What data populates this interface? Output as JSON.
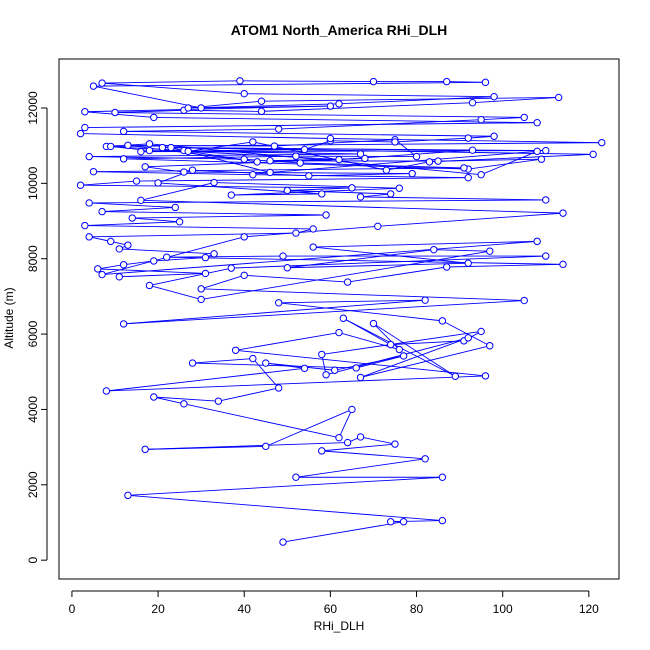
{
  "chart_data": {
    "type": "line",
    "title": "ATOM1 North_America RHi_DLH",
    "xlabel": "RHi_DLH",
    "ylabel": "Altitude (m)",
    "xlim": [
      -3,
      127
    ],
    "ylim": [
      -500,
      13300
    ],
    "x_ticks": [
      "0",
      "20",
      "40",
      "60",
      "80",
      "100",
      "120"
    ],
    "y_ticks": [
      "0",
      "2000",
      "4000",
      "6000",
      "8000",
      "10000",
      "12000"
    ],
    "grid": false,
    "legend": "none",
    "markers": "open-circle",
    "color": "#0000ff",
    "series": [
      {
        "x": [
          49,
          77,
          74,
          86,
          13,
          86,
          52,
          82,
          58,
          75,
          67,
          64,
          17,
          45,
          65,
          62,
          26,
          19,
          34,
          48,
          42,
          28,
          66,
          77,
          61,
          45,
          54,
          8,
          96,
          38,
          62,
          76,
          70,
          89,
          63,
          74,
          91,
          95,
          58,
          59,
          92,
          67,
          97,
          86,
          48,
          82,
          12,
          105,
          30,
          40,
          64,
          87,
          114,
          22,
          49,
          110,
          37,
          18,
          30,
          97,
          84,
          50,
          92,
          56,
          108,
          7,
          40,
          71,
          114,
          16,
          33,
          76,
          37,
          58,
          20,
          28,
          55,
          79,
          26,
          17,
          68,
          46,
          85,
          109,
          92,
          12,
          52,
          80,
          75,
          47,
          13,
          43,
          26,
          8,
          18,
          95,
          108,
          46,
          23,
          93,
          62,
          27,
          42,
          73,
          83,
          121,
          21,
          110,
          16,
          54,
          60,
          75,
          92,
          98,
          12,
          48,
          95,
          105,
          10,
          26,
          44,
          93,
          113,
          44,
          27,
          62,
          98,
          40,
          7,
          39,
          70,
          87,
          96,
          5,
          30,
          60,
          3,
          19,
          108,
          3,
          2,
          60,
          123,
          9,
          18,
          67,
          4,
          40,
          53,
          91,
          5,
          42,
          92,
          15,
          2,
          65,
          50,
          74,
          67,
          110,
          4,
          24,
          7,
          59,
          14,
          25,
          3,
          56,
          52,
          4,
          9,
          13,
          11,
          33,
          31,
          19,
          12,
          6,
          31,
          11
        ],
        "y": [
          480,
          1020,
          1020,
          1050,
          1720,
          2200,
          2200,
          2690,
          2900,
          3080,
          3270,
          3120,
          2940,
          3020,
          4000,
          3250,
          4150,
          4330,
          4220,
          4570,
          5350,
          5230,
          5100,
          5420,
          5040,
          5230,
          5090,
          4490,
          4890,
          5570,
          6040,
          5590,
          6280,
          4880,
          6420,
          5720,
          5820,
          6070,
          5460,
          4920,
          5900,
          4850,
          5690,
          6350,
          6830,
          6900,
          6270,
          6890,
          7200,
          7560,
          7380,
          7780,
          7850,
          8040,
          8070,
          8070,
          7750,
          7290,
          6920,
          8200,
          8240,
          7760,
          7880,
          8310,
          8460,
          7580,
          8580,
          8860,
          9210,
          9550,
          10020,
          9870,
          9690,
          9720,
          10010,
          10350,
          10200,
          10260,
          10300,
          10440,
          10660,
          10600,
          10590,
          10640,
          10380,
          10650,
          10720,
          10710,
          11160,
          10990,
          11010,
          10570,
          10870,
          10980,
          11050,
          10230,
          10850,
          10290,
          10950,
          10880,
          10630,
          10850,
          11100,
          10350,
          10570,
          10770,
          10950,
          10870,
          10840,
          10900,
          11130,
          11100,
          11200,
          11250,
          11380,
          11440,
          11690,
          11750,
          11880,
          11940,
          11910,
          12140,
          12280,
          12180,
          12000,
          12110,
          12300,
          12380,
          12660,
          12720,
          12700,
          12700,
          12680,
          12580,
          12000,
          12050,
          11900,
          11750,
          11610,
          11480,
          11320,
          11190,
          11080,
          10980,
          10870,
          10780,
          10710,
          10640,
          10540,
          10410,
          10310,
          10230,
          10150,
          10060,
          9950,
          9880,
          9810,
          9720,
          9640,
          9560,
          9480,
          9360,
          9250,
          9160,
          9080,
          8980,
          8880,
          8790,
          8680,
          8580,
          8460,
          8360,
          8260,
          8130,
          8030,
          7940,
          7840,
          7730,
          7610,
          7520
        ]
      }
    ]
  }
}
